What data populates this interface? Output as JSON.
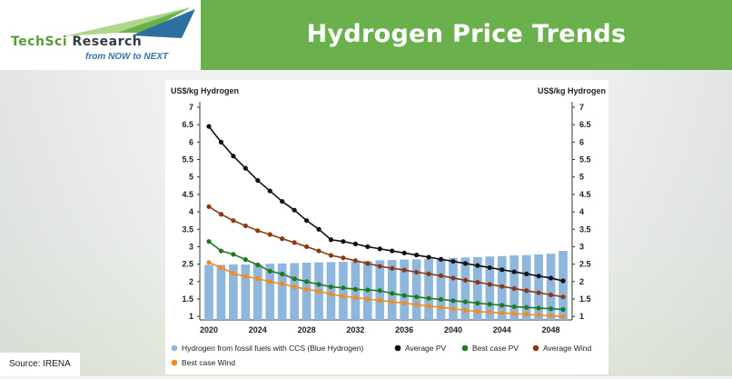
{
  "header": {
    "title": "Hydrogen Price Trends",
    "logo_name_a": "TechSci",
    "logo_name_b": " Research",
    "logo_tagline": "from NOW to NEXT"
  },
  "source": "Source: IRENA",
  "colors": {
    "banner": "#6ab04c",
    "bars": "#8fb6dc",
    "average_pv": "#111111",
    "best_pv": "#1f7a1f",
    "average_wind": "#8a3a12",
    "best_wind": "#f28c1c"
  },
  "chart_data": {
    "type": "bar+line",
    "ylabel_left": "US$/kg Hydrogen",
    "ylabel_right": "US$/kg Hydrogen",
    "ylim": [
      0.9,
      7
    ],
    "yticks": [
      "1",
      "1.5",
      "2",
      "2.5",
      "3",
      "3.5",
      "4",
      "4.5",
      "5",
      "5.5",
      "6",
      "6.5",
      "7"
    ],
    "xticks": [
      "2020",
      "2024",
      "2028",
      "2032",
      "2036",
      "2040",
      "2044",
      "2048"
    ],
    "x": [
      2020,
      2021,
      2022,
      2023,
      2024,
      2025,
      2026,
      2027,
      2028,
      2029,
      2030,
      2031,
      2032,
      2033,
      2034,
      2035,
      2036,
      2037,
      2038,
      2039,
      2040,
      2041,
      2042,
      2043,
      2044,
      2045,
      2046,
      2047,
      2048,
      2049
    ],
    "bars": {
      "name": "Hydrogen from fossil fuels with CCS (Blue Hydrogen)",
      "values": [
        2.48,
        2.48,
        2.49,
        2.49,
        2.5,
        2.51,
        2.52,
        2.53,
        2.54,
        2.55,
        2.56,
        2.57,
        2.58,
        2.59,
        2.61,
        2.62,
        2.63,
        2.64,
        2.65,
        2.66,
        2.68,
        2.69,
        2.7,
        2.72,
        2.73,
        2.75,
        2.76,
        2.78,
        2.8,
        2.88
      ]
    },
    "series": [
      {
        "name": "Average PV",
        "values": [
          6.45,
          6.0,
          5.6,
          5.25,
          4.9,
          4.6,
          4.3,
          4.05,
          3.75,
          3.5,
          3.2,
          3.15,
          3.08,
          3.0,
          2.94,
          2.88,
          2.82,
          2.76,
          2.7,
          2.64,
          2.58,
          2.52,
          2.46,
          2.4,
          2.34,
          2.28,
          2.22,
          2.16,
          2.1,
          2.02
        ]
      },
      {
        "name": "Best case PV",
        "values": [
          3.15,
          2.88,
          2.78,
          2.63,
          2.48,
          2.3,
          2.22,
          2.08,
          2.0,
          1.92,
          1.85,
          1.82,
          1.78,
          1.76,
          1.74,
          1.66,
          1.6,
          1.56,
          1.52,
          1.49,
          1.45,
          1.42,
          1.38,
          1.35,
          1.32,
          1.28,
          1.26,
          1.24,
          1.22,
          1.2
        ]
      },
      {
        "name": "Average Wind",
        "values": [
          4.15,
          3.93,
          3.75,
          3.6,
          3.46,
          3.35,
          3.23,
          3.12,
          3.0,
          2.88,
          2.75,
          2.68,
          2.6,
          2.52,
          2.44,
          2.38,
          2.33,
          2.27,
          2.22,
          2.17,
          2.1,
          2.04,
          1.98,
          1.92,
          1.86,
          1.8,
          1.74,
          1.68,
          1.62,
          1.56
        ]
      },
      {
        "name": "Best case Wind",
        "values": [
          2.55,
          2.4,
          2.23,
          2.15,
          2.08,
          2.0,
          1.93,
          1.85,
          1.78,
          1.72,
          1.64,
          1.58,
          1.54,
          1.5,
          1.46,
          1.42,
          1.38,
          1.34,
          1.3,
          1.26,
          1.22,
          1.18,
          1.14,
          1.12,
          1.1,
          1.08,
          1.06,
          1.04,
          1.02,
          1.0
        ]
      }
    ],
    "legend_placement": "bottom",
    "grid": false
  }
}
